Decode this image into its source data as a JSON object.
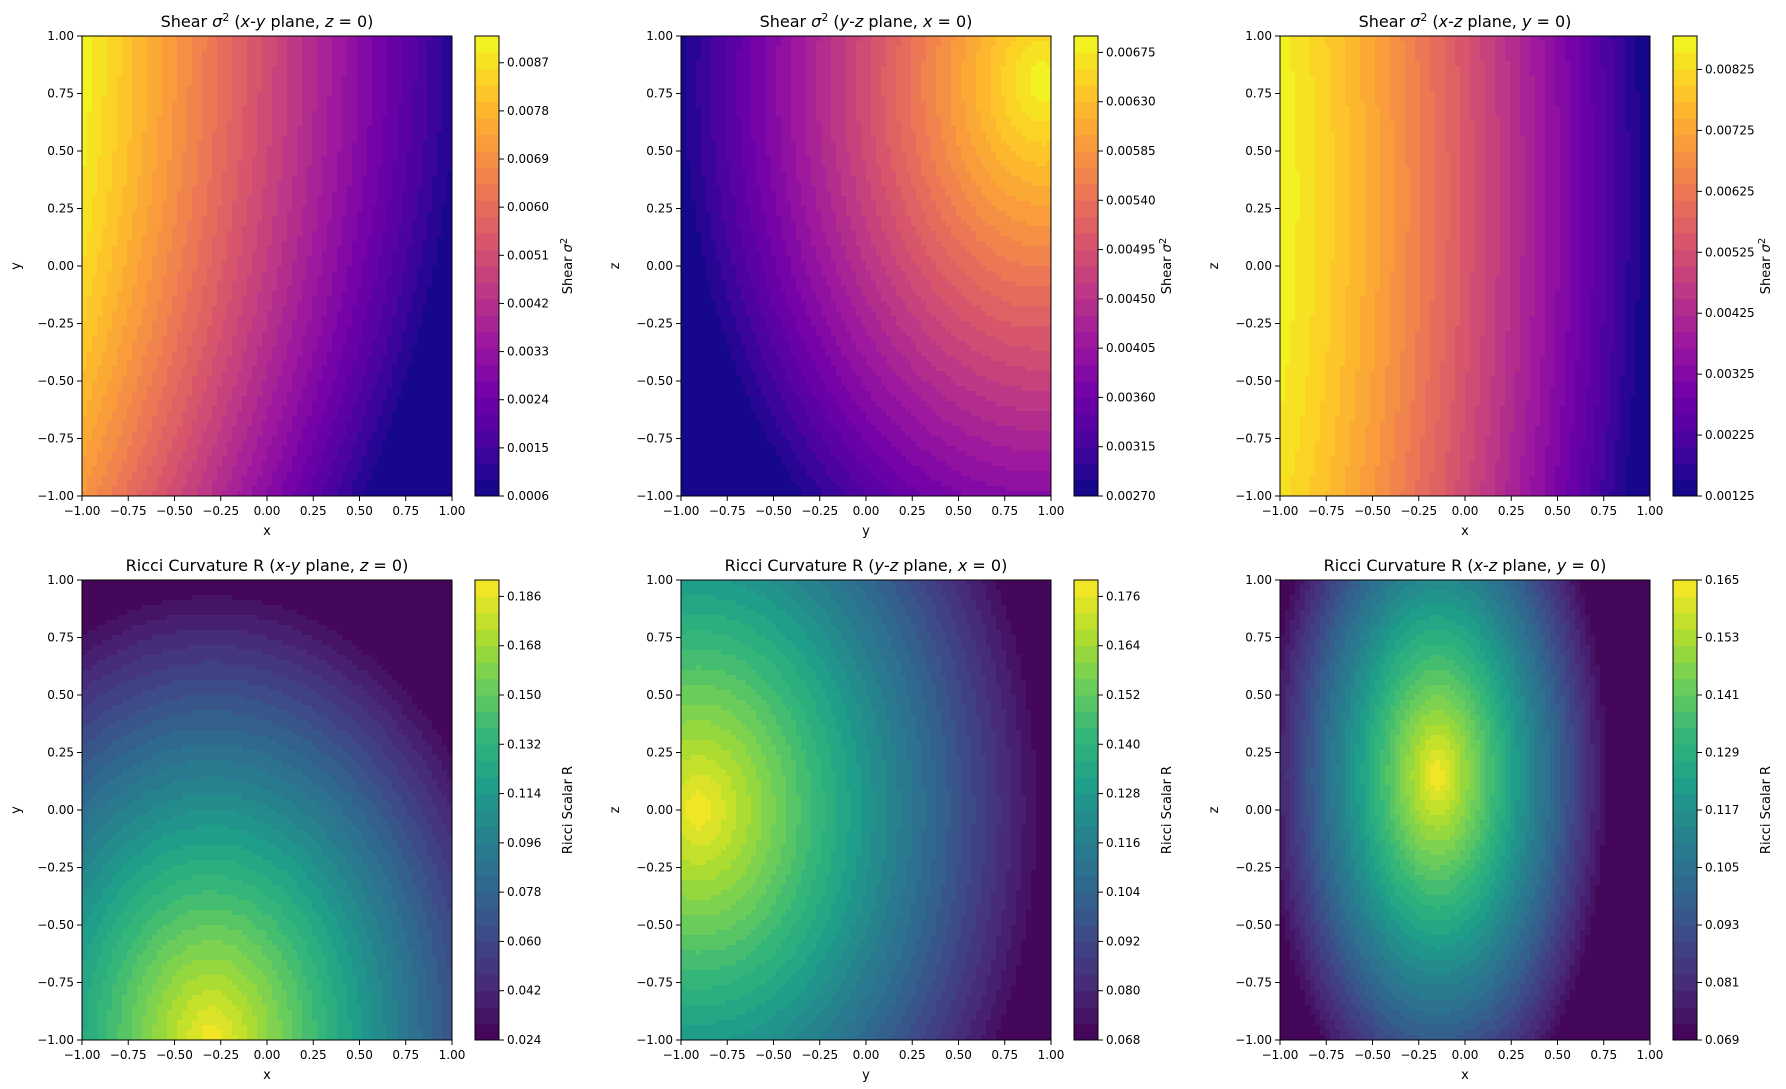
{
  "chart_data": [
    {
      "type": "heatmap",
      "title_parts": [
        "Shear ",
        "σ",
        "2",
        " (",
        "x",
        "-",
        "y",
        " plane, ",
        "z",
        " = 0)"
      ],
      "title": "Shear σ² (x-y plane, z = 0)",
      "xlabel": "x",
      "ylabel": "y",
      "xlim": [
        -1,
        1
      ],
      "ylim": [
        -1,
        1
      ],
      "xticks": [
        "−1.00",
        "−0.75",
        "−0.50",
        "−0.25",
        "0.00",
        "0.25",
        "0.50",
        "0.75",
        "1.00"
      ],
      "yticks": [
        "−1.00",
        "−0.75",
        "−0.50",
        "−0.25",
        "0.00",
        "0.25",
        "0.50",
        "0.75",
        "1.00"
      ],
      "colormap": "plasma",
      "levels": 28,
      "colorbar": {
        "label_parts": [
          "Shear ",
          "σ",
          "2"
        ],
        "label": "Shear σ²",
        "range": [
          0.0006,
          0.0092
        ],
        "ticks": [
          0.0006,
          0.0015,
          0.0024,
          0.0033,
          0.0042,
          0.0051,
          0.006,
          0.0069,
          0.0078,
          0.0087
        ],
        "tick_labels": [
          "0.0006",
          "0.0015",
          "0.0024",
          "0.0033",
          "0.0042",
          "0.0051",
          "0.0060",
          "0.0069",
          "0.0078",
          "0.0087"
        ]
      },
      "field": "shear_xy"
    },
    {
      "type": "heatmap",
      "title_parts": [
        "Shear ",
        "σ",
        "2",
        " (",
        "y",
        "-",
        "z",
        " plane, ",
        "x",
        " = 0)"
      ],
      "title": "Shear σ² (y-z plane, x = 0)",
      "xlabel": "y",
      "ylabel": "z",
      "xlim": [
        -1,
        1
      ],
      "ylim": [
        -1,
        1
      ],
      "xticks": [
        "−1.00",
        "−0.75",
        "−0.50",
        "−0.25",
        "0.00",
        "0.25",
        "0.50",
        "0.75",
        "1.00"
      ],
      "yticks": [
        "−1.00",
        "−0.75",
        "−0.50",
        "−0.25",
        "0.00",
        "0.25",
        "0.50",
        "0.75",
        "1.00"
      ],
      "colormap": "plasma",
      "levels": 28,
      "colorbar": {
        "label_parts": [
          "Shear ",
          "σ",
          "2"
        ],
        "label": "Shear σ²",
        "range": [
          0.0027,
          0.0069
        ],
        "ticks": [
          0.0027,
          0.00315,
          0.0036,
          0.00405,
          0.0045,
          0.00495,
          0.0054,
          0.00585,
          0.0063,
          0.00675
        ],
        "tick_labels": [
          "0.00270",
          "0.00315",
          "0.00360",
          "0.00405",
          "0.00450",
          "0.00495",
          "0.00540",
          "0.00585",
          "0.00630",
          "0.00675"
        ]
      },
      "field": "shear_yz"
    },
    {
      "type": "heatmap",
      "title_parts": [
        "Shear ",
        "σ",
        "2",
        " (",
        "x",
        "-",
        "z",
        " plane, ",
        "y",
        " = 0)"
      ],
      "title": "Shear σ² (x-z plane, y = 0)",
      "xlabel": "x",
      "ylabel": "z",
      "xlim": [
        -1,
        1
      ],
      "ylim": [
        -1,
        1
      ],
      "xticks": [
        "−1.00",
        "−0.75",
        "−0.50",
        "−0.25",
        "0.00",
        "0.25",
        "0.50",
        "0.75",
        "1.00"
      ],
      "yticks": [
        "−1.00",
        "−0.75",
        "−0.50",
        "−0.25",
        "0.00",
        "0.25",
        "0.50",
        "0.75",
        "1.00"
      ],
      "colormap": "plasma",
      "levels": 28,
      "colorbar": {
        "label_parts": [
          "Shear ",
          "σ",
          "2"
        ],
        "label": "Shear σ²",
        "range": [
          0.00125,
          0.0088
        ],
        "ticks": [
          0.00125,
          0.00225,
          0.00325,
          0.00425,
          0.00525,
          0.00625,
          0.00725,
          0.00825
        ],
        "tick_labels": [
          "0.00125",
          "0.00225",
          "0.00325",
          "0.00425",
          "0.00525",
          "0.00625",
          "0.00725",
          "0.00825"
        ]
      },
      "field": "shear_xz"
    },
    {
      "type": "heatmap",
      "title_parts": [
        "Ricci Curvature R (",
        "x",
        "-",
        "y",
        " plane, ",
        "z",
        " = 0)"
      ],
      "title": "Ricci Curvature R (x-y plane, z = 0)",
      "xlabel": "x",
      "ylabel": "y",
      "xlim": [
        -1,
        1
      ],
      "ylim": [
        -1,
        1
      ],
      "xticks": [
        "−1.00",
        "−0.75",
        "−0.50",
        "−0.25",
        "0.00",
        "0.25",
        "0.50",
        "0.75",
        "1.00"
      ],
      "yticks": [
        "−1.00",
        "−0.75",
        "−0.50",
        "−0.25",
        "0.00",
        "0.25",
        "0.50",
        "0.75",
        "1.00"
      ],
      "colormap": "viridis",
      "levels": 28,
      "colorbar": {
        "label_parts": [
          "Ricci Scalar R"
        ],
        "label": "Ricci Scalar R",
        "range": [
          0.024,
          0.192
        ],
        "ticks": [
          0.024,
          0.042,
          0.06,
          0.078,
          0.096,
          0.114,
          0.132,
          0.15,
          0.168,
          0.186
        ],
        "tick_labels": [
          "0.024",
          "0.042",
          "0.060",
          "0.078",
          "0.096",
          "0.114",
          "0.132",
          "0.150",
          "0.168",
          "0.186"
        ]
      },
      "field": "ricci_xy"
    },
    {
      "type": "heatmap",
      "title_parts": [
        "Ricci Curvature R (",
        "y",
        "-",
        "z",
        " plane, ",
        "x",
        " = 0)"
      ],
      "title": "Ricci Curvature R (y-z plane, x = 0)",
      "xlabel": "y",
      "ylabel": "z",
      "xlim": [
        -1,
        1
      ],
      "ylim": [
        -1,
        1
      ],
      "xticks": [
        "−1.00",
        "−0.75",
        "−0.50",
        "−0.25",
        "0.00",
        "0.25",
        "0.50",
        "0.75",
        "1.00"
      ],
      "yticks": [
        "−1.00",
        "−0.75",
        "−0.50",
        "−0.25",
        "0.00",
        "0.25",
        "0.50",
        "0.75",
        "1.00"
      ],
      "colormap": "viridis",
      "levels": 28,
      "colorbar": {
        "label_parts": [
          "Ricci Scalar R"
        ],
        "label": "Ricci Scalar R",
        "range": [
          0.068,
          0.18
        ],
        "ticks": [
          0.068,
          0.08,
          0.092,
          0.104,
          0.116,
          0.128,
          0.14,
          0.152,
          0.164,
          0.176
        ],
        "tick_labels": [
          "0.068",
          "0.080",
          "0.092",
          "0.104",
          "0.116",
          "0.128",
          "0.140",
          "0.152",
          "0.164",
          "0.176"
        ]
      },
      "field": "ricci_yz"
    },
    {
      "type": "heatmap",
      "title_parts": [
        "Ricci Curvature R (",
        "x",
        "-",
        "z",
        " plane, ",
        "y",
        " = 0)"
      ],
      "title": "Ricci Curvature R (x-z plane, y = 0)",
      "xlabel": "x",
      "ylabel": "z",
      "xlim": [
        -1,
        1
      ],
      "ylim": [
        -1,
        1
      ],
      "xticks": [
        "−1.00",
        "−0.75",
        "−0.50",
        "−0.25",
        "0.00",
        "0.25",
        "0.50",
        "0.75",
        "1.00"
      ],
      "yticks": [
        "−1.00",
        "−0.75",
        "−0.50",
        "−0.25",
        "0.00",
        "0.25",
        "0.50",
        "0.75",
        "1.00"
      ],
      "colormap": "viridis",
      "levels": 28,
      "colorbar": {
        "label_parts": [
          "Ricci Scalar R"
        ],
        "label": "Ricci Scalar R",
        "range": [
          0.069,
          0.165
        ],
        "ticks": [
          0.069,
          0.081,
          0.093,
          0.105,
          0.117,
          0.129,
          0.141,
          0.153,
          0.165
        ],
        "tick_labels": [
          "0.069",
          "0.081",
          "0.093",
          "0.105",
          "0.117",
          "0.129",
          "0.141",
          "0.153",
          "0.165"
        ]
      },
      "field": "ricci_xz"
    }
  ]
}
